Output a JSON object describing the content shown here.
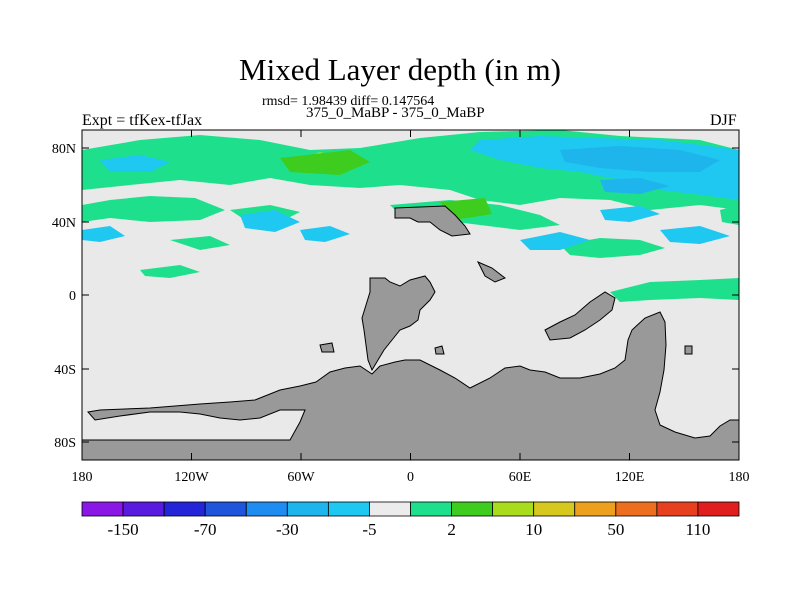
{
  "title": "Mixed Layer depth (in m)",
  "stats_text": "rmsd= 1.98439 diff= 0.147564",
  "subtitle": "375_0_MaBP - 375_0_MaBP",
  "left_label": "Expt = tfKex-tfJax",
  "right_label": "DJF",
  "y_ticks": [
    "80N",
    "40N",
    "0",
    "40S",
    "80S"
  ],
  "x_ticks": [
    "180",
    "120W",
    "60W",
    "0",
    "60E",
    "120E",
    "180"
  ],
  "colorbar": {
    "labels": [
      "-150",
      "-70",
      "-30",
      "-5",
      "2",
      "10",
      "50",
      "110"
    ],
    "colors": [
      "#8a17e6",
      "#5a1be0",
      "#2424d8",
      "#1f55dd",
      "#1e8cf0",
      "#1eb4ec",
      "#1ec8f0",
      "#ececec",
      "#1ee08c",
      "#3ecc1e",
      "#aadc1e",
      "#d6c81e",
      "#eca01e",
      "#ec6e1e",
      "#e6401e",
      "#e01e1e"
    ]
  },
  "colors": {
    "land": "#999999",
    "ocean_background": "#e9e9e9"
  }
}
